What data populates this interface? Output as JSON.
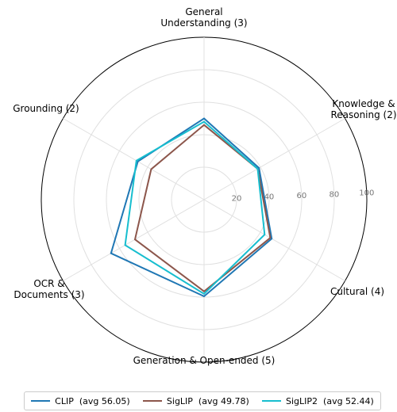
{
  "chart_data": {
    "type": "radar",
    "categories": [
      "General Understanding (3)",
      "Knowledge & Reasoning (2)",
      "Cultural (4)",
      "Generation & Open-ended (5)",
      "OCR & Documents (3)",
      "Grounding (2)"
    ],
    "series": [
      {
        "name": "CLIP  (avg 56.05)",
        "color": "#1f77b4",
        "values": [
          50,
          39,
          48,
          59.5,
          66,
          47
        ]
      },
      {
        "name": "SigLIP  (avg 49.78)",
        "color": "#8c564b",
        "values": [
          46,
          38,
          47,
          56.5,
          49,
          37.5
        ]
      },
      {
        "name": "SigLIP2  (avg 52.44)",
        "color": "#17becf",
        "values": [
          48,
          38,
          43,
          58,
          56,
          48
        ]
      }
    ],
    "rlim": [
      0,
      100
    ],
    "rticks": [
      20,
      40,
      60,
      80,
      100
    ],
    "grid": true,
    "legend": "bottom"
  }
}
